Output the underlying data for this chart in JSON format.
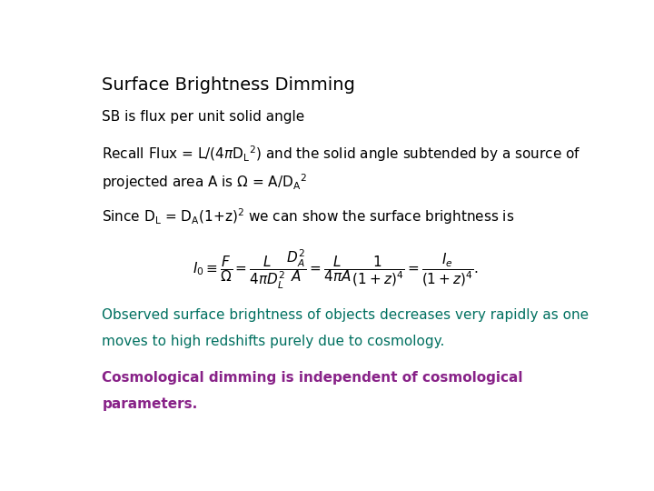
{
  "title": "Surface Brightness Dimming",
  "line1": "SB is flux per unit solid angle",
  "line2a": "Recall Flux = L/(4πD",
  "line2b": "2) and the solid angle subtended by a source of",
  "line2c": "projected area A is Ω = A/D",
  "line2d": "2",
  "line3": "Since D",
  "observed_line1": "Observed surface brightness of objects decreases very rapidly as one",
  "observed_line2": "moves to high redshifts purely due to cosmology.",
  "cosmo_line1": "Cosmological dimming is independent of cosmological",
  "cosmo_line2": "parameters.",
  "bg_color": "#ffffff",
  "text_color": "#000000",
  "observed_color": "#007060",
  "cosmo_color": "#882288",
  "title_fontsize": 14,
  "body_fontsize": 11,
  "eq_fontsize": 11,
  "colored_fontsize": 11
}
